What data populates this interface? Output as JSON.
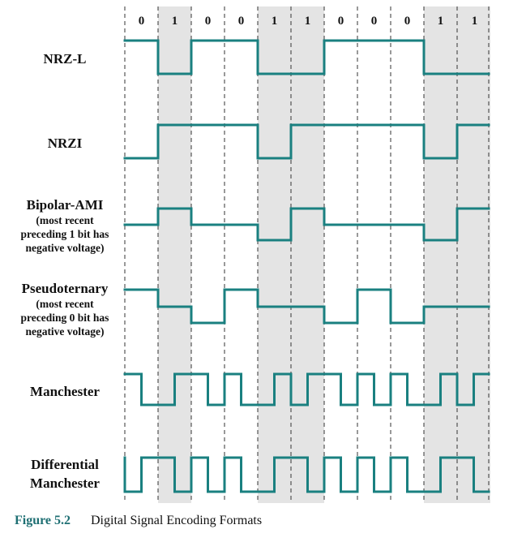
{
  "bits": [
    "0",
    "1",
    "0",
    "0",
    "1",
    "1",
    "0",
    "0",
    "0",
    "1",
    "1"
  ],
  "rows": [
    {
      "name": "nrz-l",
      "label_lines": [
        "NRZ-L"
      ],
      "sub_lines": []
    },
    {
      "name": "nrzi",
      "label_lines": [
        "NRZI"
      ],
      "sub_lines": []
    },
    {
      "name": "bipolar-ami",
      "label_lines": [
        "Bipolar-AMI"
      ],
      "sub_lines": [
        "(most recent",
        "preceding 1 bit has",
        "negative voltage)"
      ]
    },
    {
      "name": "pseudoternary",
      "label_lines": [
        "Pseudoternary"
      ],
      "sub_lines": [
        "(most recent",
        "preceding 0 bit has",
        "negative voltage)"
      ]
    },
    {
      "name": "manchester",
      "label_lines": [
        "Manchester"
      ],
      "sub_lines": []
    },
    {
      "name": "differential-manchester",
      "label_lines": [
        "Differential",
        "Manchester"
      ],
      "sub_lines": []
    }
  ],
  "caption": {
    "number": "Figure 5.2",
    "title": "Digital Signal Encoding Formats"
  },
  "colors": {
    "signal": "#1a8080",
    "shade": "#e4e4e4",
    "caption_accent": "#1e6f73"
  }
}
